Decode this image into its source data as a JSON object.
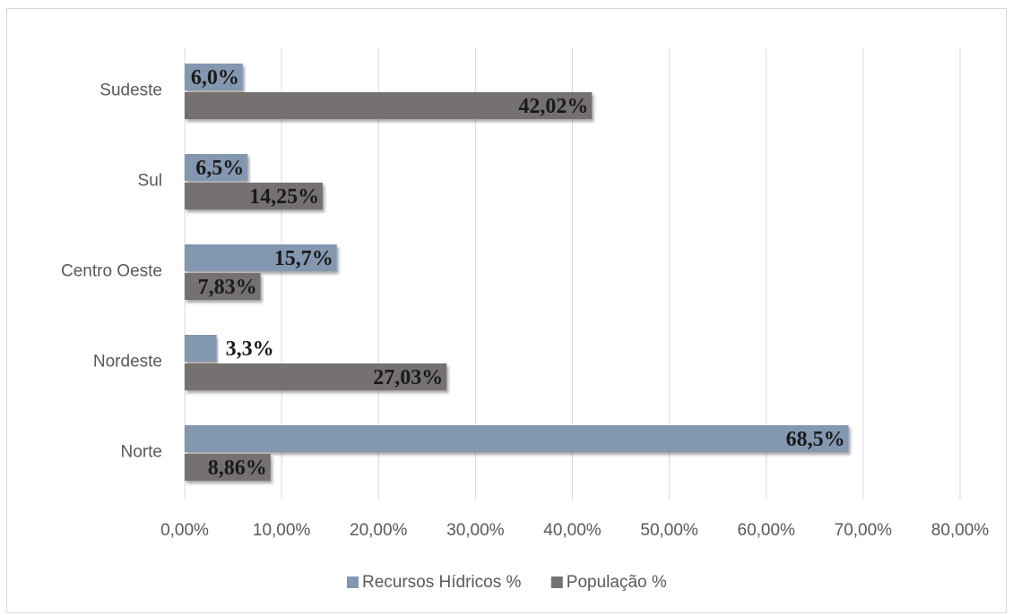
{
  "chart_data": {
    "type": "bar",
    "orientation": "horizontal",
    "categories": [
      "Norte",
      "Nordeste",
      "Centro Oeste",
      "Sul",
      "Sudeste"
    ],
    "series": [
      {
        "name": "Recursos Hídricos %",
        "color": "#8497b0",
        "values": [
          68.5,
          3.3,
          15.7,
          6.5,
          6.0
        ],
        "labels": [
          "68,5%",
          "3,3%",
          "15,7%",
          "6,5%",
          "6,0%"
        ]
      },
      {
        "name": "População %",
        "color": "#767171",
        "values": [
          8.86,
          27.03,
          7.83,
          14.25,
          42.02
        ],
        "labels": [
          "8,86%",
          "27,03%",
          "7,83%",
          "14,25%",
          "42,02%"
        ]
      }
    ],
    "xlim": [
      0,
      80
    ],
    "x_ticks": [
      "0,00%",
      "10,00%",
      "20,00%",
      "30,00%",
      "40,00%",
      "50,00%",
      "60,00%",
      "70,00%",
      "80,00%"
    ],
    "grid": true,
    "legend_position": "bottom"
  }
}
